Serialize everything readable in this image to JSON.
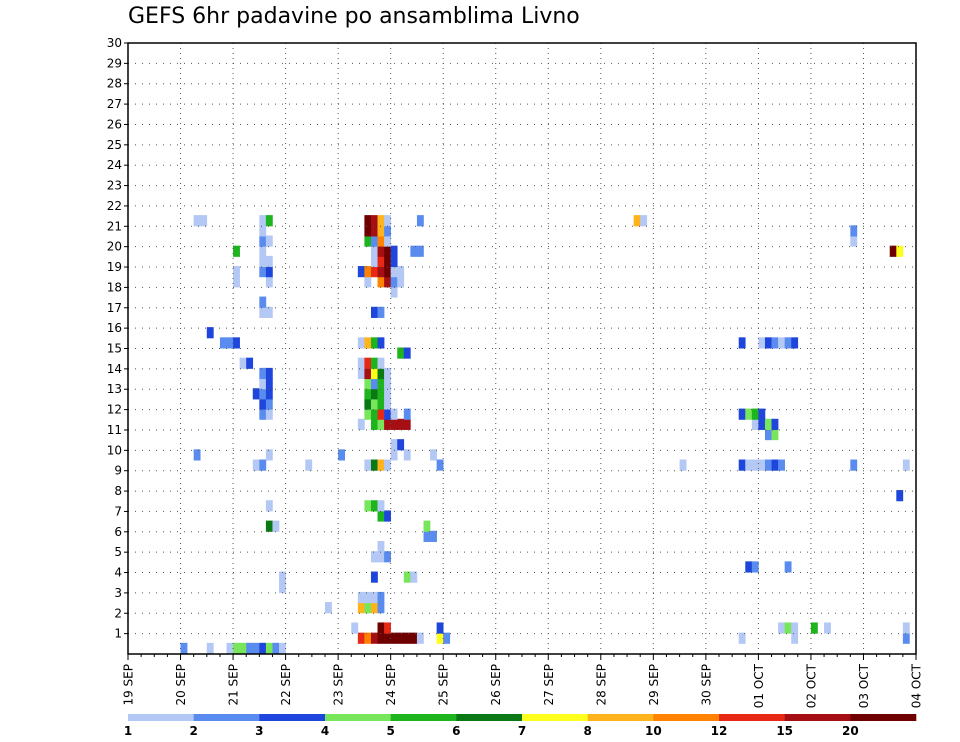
{
  "chart_data": {
    "type": "heatmap",
    "title": "GEFS 6hr padavine po ansamblima Livno",
    "xlabel": "",
    "ylabel": "",
    "x_tick_labels": [
      "19 SEP",
      "20 SEP",
      "21 SEP",
      "22 SEP",
      "23 SEP",
      "24 SEP",
      "25 SEP",
      "26 SEP",
      "27 SEP",
      "28 SEP",
      "29 SEP",
      "30 SEP",
      "01 OCT",
      "02 OCT",
      "03 OCT",
      "04 OCT"
    ],
    "y_tick_labels": [
      "1",
      "2",
      "3",
      "4",
      "5",
      "6",
      "7",
      "8",
      "9",
      "10",
      "11",
      "12",
      "13",
      "14",
      "15",
      "16",
      "17",
      "18",
      "19",
      "20",
      "21",
      "22",
      "23",
      "24",
      "25",
      "26",
      "27",
      "28",
      "29",
      "30"
    ],
    "x_steps_per_day": 4,
    "members": 30,
    "grid": "dotted",
    "colorbar": {
      "position": "bottom",
      "labels": [
        "1",
        "2",
        "3",
        "4",
        "5",
        "6",
        "7",
        "8",
        "10",
        "12",
        "15",
        "20"
      ],
      "colors": [
        "#b4c8f5",
        "#5a8cf0",
        "#1e46dc",
        "#78e65a",
        "#1eb41e",
        "#0a7814",
        "#ffff1e",
        "#ffb41e",
        "#ff8200",
        "#e62814",
        "#a50f14",
        "#6e0000"
      ]
    },
    "cells": [
      [
        0,
        8,
        1
      ],
      [
        0,
        12,
        0
      ],
      [
        0,
        15,
        0
      ],
      [
        0,
        16,
        3
      ],
      [
        0,
        17,
        3
      ],
      [
        0,
        18,
        1
      ],
      [
        0,
        19,
        1
      ],
      [
        0,
        20,
        2
      ],
      [
        0,
        21,
        3
      ],
      [
        0,
        22,
        1
      ],
      [
        0,
        23,
        0
      ],
      [
        1,
        35,
        9
      ],
      [
        1,
        36,
        8
      ],
      [
        1,
        37,
        10
      ],
      [
        1,
        38,
        11
      ],
      [
        1,
        39,
        11
      ],
      [
        1,
        40,
        11
      ],
      [
        1,
        41,
        11
      ],
      [
        1,
        42,
        11
      ],
      [
        1,
        43,
        11
      ],
      [
        1,
        44,
        0
      ],
      [
        1,
        47,
        6
      ],
      [
        1,
        48,
        1
      ],
      [
        1,
        93,
        0
      ],
      [
        1,
        101,
        0
      ],
      [
        1,
        118,
        1
      ],
      [
        2,
        34,
        0
      ],
      [
        2,
        38,
        11
      ],
      [
        2,
        39,
        9
      ],
      [
        2,
        47,
        2
      ],
      [
        2,
        99,
        0
      ],
      [
        2,
        100,
        3
      ],
      [
        2,
        101,
        0
      ],
      [
        2,
        104,
        4
      ],
      [
        2,
        106,
        0
      ],
      [
        2,
        118,
        0
      ],
      [
        4,
        30,
        0
      ],
      [
        4,
        35,
        7
      ],
      [
        4,
        36,
        3
      ],
      [
        4,
        37,
        7
      ],
      [
        4,
        38,
        1
      ],
      [
        5,
        35,
        0
      ],
      [
        5,
        36,
        0
      ],
      [
        5,
        37,
        0
      ],
      [
        5,
        38,
        1
      ],
      [
        6,
        23,
        0
      ],
      [
        7,
        23,
        0
      ],
      [
        7,
        37,
        2
      ],
      [
        7,
        42,
        3
      ],
      [
        7,
        43,
        0
      ],
      [
        8,
        94,
        2
      ],
      [
        8,
        95,
        1
      ],
      [
        8,
        100,
        1
      ],
      [
        9,
        37,
        0
      ],
      [
        9,
        38,
        0
      ],
      [
        9,
        39,
        1
      ],
      [
        10,
        38,
        0
      ],
      [
        11,
        45,
        1
      ],
      [
        11,
        46,
        1
      ],
      [
        12,
        21,
        5
      ],
      [
        12,
        22,
        0
      ],
      [
        12,
        45,
        3
      ],
      [
        13,
        38,
        4
      ],
      [
        13,
        39,
        2
      ],
      [
        14,
        21,
        0
      ],
      [
        14,
        36,
        3
      ],
      [
        14,
        37,
        4
      ],
      [
        14,
        38,
        0
      ],
      [
        15,
        117,
        2
      ],
      [
        18,
        19,
        0
      ],
      [
        18,
        20,
        1
      ],
      [
        18,
        27,
        0
      ],
      [
        18,
        36,
        0
      ],
      [
        18,
        37,
        5
      ],
      [
        18,
        38,
        7
      ],
      [
        18,
        39,
        0
      ],
      [
        18,
        47,
        1
      ],
      [
        18,
        84,
        0
      ],
      [
        18,
        93,
        2
      ],
      [
        18,
        94,
        0
      ],
      [
        18,
        95,
        0
      ],
      [
        18,
        96,
        0
      ],
      [
        18,
        97,
        1
      ],
      [
        18,
        98,
        2
      ],
      [
        18,
        99,
        1
      ],
      [
        18,
        110,
        1
      ],
      [
        18,
        118,
        0
      ],
      [
        19,
        10,
        1
      ],
      [
        19,
        21,
        0
      ],
      [
        19,
        32,
        1
      ],
      [
        19,
        40,
        0
      ],
      [
        19,
        42,
        0
      ],
      [
        19,
        46,
        0
      ],
      [
        20,
        40,
        0
      ],
      [
        20,
        41,
        2
      ],
      [
        21,
        97,
        1
      ],
      [
        21,
        98,
        3
      ],
      [
        22,
        35,
        0
      ],
      [
        22,
        37,
        4
      ],
      [
        22,
        38,
        3
      ],
      [
        22,
        39,
        10
      ],
      [
        22,
        40,
        10
      ],
      [
        22,
        41,
        10
      ],
      [
        22,
        42,
        10
      ],
      [
        22,
        95,
        0
      ],
      [
        22,
        96,
        2
      ],
      [
        22,
        97,
        3
      ],
      [
        22,
        98,
        2
      ],
      [
        23,
        20,
        1
      ],
      [
        23,
        21,
        0
      ],
      [
        23,
        36,
        3
      ],
      [
        23,
        37,
        4
      ],
      [
        23,
        38,
        9
      ],
      [
        23,
        39,
        2
      ],
      [
        23,
        40,
        0
      ],
      [
        23,
        42,
        1
      ],
      [
        23,
        93,
        2
      ],
      [
        23,
        94,
        3
      ],
      [
        23,
        95,
        4
      ],
      [
        23,
        96,
        2
      ],
      [
        24,
        20,
        2
      ],
      [
        24,
        21,
        1
      ],
      [
        24,
        36,
        5
      ],
      [
        24,
        37,
        3
      ],
      [
        24,
        38,
        4
      ],
      [
        24,
        39,
        0
      ],
      [
        25,
        19,
        2
      ],
      [
        25,
        20,
        1
      ],
      [
        25,
        21,
        2
      ],
      [
        25,
        36,
        4
      ],
      [
        25,
        37,
        5
      ],
      [
        25,
        38,
        4
      ],
      [
        25,
        39,
        0
      ],
      [
        26,
        20,
        0
      ],
      [
        26,
        21,
        2
      ],
      [
        26,
        36,
        3
      ],
      [
        26,
        37,
        1
      ],
      [
        26,
        38,
        4
      ],
      [
        26,
        39,
        0
      ],
      [
        27,
        20,
        1
      ],
      [
        27,
        21,
        2
      ],
      [
        27,
        35,
        0
      ],
      [
        27,
        36,
        10
      ],
      [
        27,
        37,
        6
      ],
      [
        27,
        38,
        5
      ],
      [
        27,
        39,
        0
      ],
      [
        28,
        17,
        0
      ],
      [
        28,
        18,
        2
      ],
      [
        28,
        35,
        0
      ],
      [
        28,
        36,
        9
      ],
      [
        28,
        37,
        4
      ],
      [
        28,
        38,
        0
      ],
      [
        29,
        41,
        4
      ],
      [
        29,
        42,
        2
      ],
      [
        30,
        14,
        1
      ],
      [
        30,
        15,
        1
      ],
      [
        30,
        16,
        2
      ],
      [
        30,
        35,
        0
      ],
      [
        30,
        36,
        7
      ],
      [
        30,
        37,
        4
      ],
      [
        30,
        38,
        2
      ],
      [
        30,
        93,
        2
      ],
      [
        30,
        96,
        0
      ],
      [
        30,
        97,
        2
      ],
      [
        30,
        98,
        1
      ],
      [
        30,
        99,
        0
      ],
      [
        30,
        100,
        1
      ],
      [
        30,
        101,
        2
      ],
      [
        31,
        12,
        2
      ],
      [
        33,
        20,
        0
      ],
      [
        33,
        21,
        0
      ],
      [
        33,
        37,
        2
      ],
      [
        33,
        38,
        1
      ],
      [
        34,
        20,
        1
      ],
      [
        35,
        40,
        0
      ],
      [
        36,
        16,
        0
      ],
      [
        36,
        21,
        0
      ],
      [
        36,
        36,
        0
      ],
      [
        36,
        38,
        8
      ],
      [
        36,
        39,
        10
      ],
      [
        36,
        40,
        1
      ],
      [
        36,
        41,
        0
      ],
      [
        37,
        16,
        0
      ],
      [
        37,
        20,
        1
      ],
      [
        37,
        21,
        2
      ],
      [
        37,
        35,
        2
      ],
      [
        37,
        36,
        8
      ],
      [
        37,
        37,
        9
      ],
      [
        37,
        38,
        10
      ],
      [
        37,
        39,
        11
      ],
      [
        37,
        40,
        0
      ],
      [
        37,
        41,
        0
      ],
      [
        38,
        20,
        0
      ],
      [
        38,
        21,
        0
      ],
      [
        38,
        37,
        0
      ],
      [
        38,
        38,
        9
      ],
      [
        38,
        39,
        11
      ],
      [
        38,
        40,
        2
      ],
      [
        39,
        16,
        4
      ],
      [
        39,
        20,
        0
      ],
      [
        39,
        37,
        0
      ],
      [
        39,
        38,
        10
      ],
      [
        39,
        39,
        11
      ],
      [
        39,
        40,
        2
      ],
      [
        39,
        43,
        1
      ],
      [
        39,
        44,
        1
      ],
      [
        39,
        116,
        11
      ],
      [
        39,
        117,
        6
      ],
      [
        40,
        20,
        1
      ],
      [
        40,
        21,
        0
      ],
      [
        40,
        36,
        4
      ],
      [
        40,
        37,
        1
      ],
      [
        40,
        38,
        8
      ],
      [
        40,
        39,
        0
      ],
      [
        40,
        110,
        0
      ],
      [
        41,
        20,
        0
      ],
      [
        41,
        36,
        11
      ],
      [
        41,
        37,
        10
      ],
      [
        41,
        38,
        7
      ],
      [
        41,
        39,
        1
      ],
      [
        41,
        110,
        1
      ],
      [
        42,
        10,
        0
      ],
      [
        42,
        11,
        0
      ],
      [
        42,
        20,
        0
      ],
      [
        42,
        21,
        4
      ],
      [
        42,
        36,
        11
      ],
      [
        42,
        37,
        10
      ],
      [
        42,
        38,
        7
      ],
      [
        42,
        39,
        0
      ],
      [
        42,
        44,
        1
      ],
      [
        42,
        77,
        7
      ],
      [
        42,
        78,
        0
      ]
    ]
  }
}
